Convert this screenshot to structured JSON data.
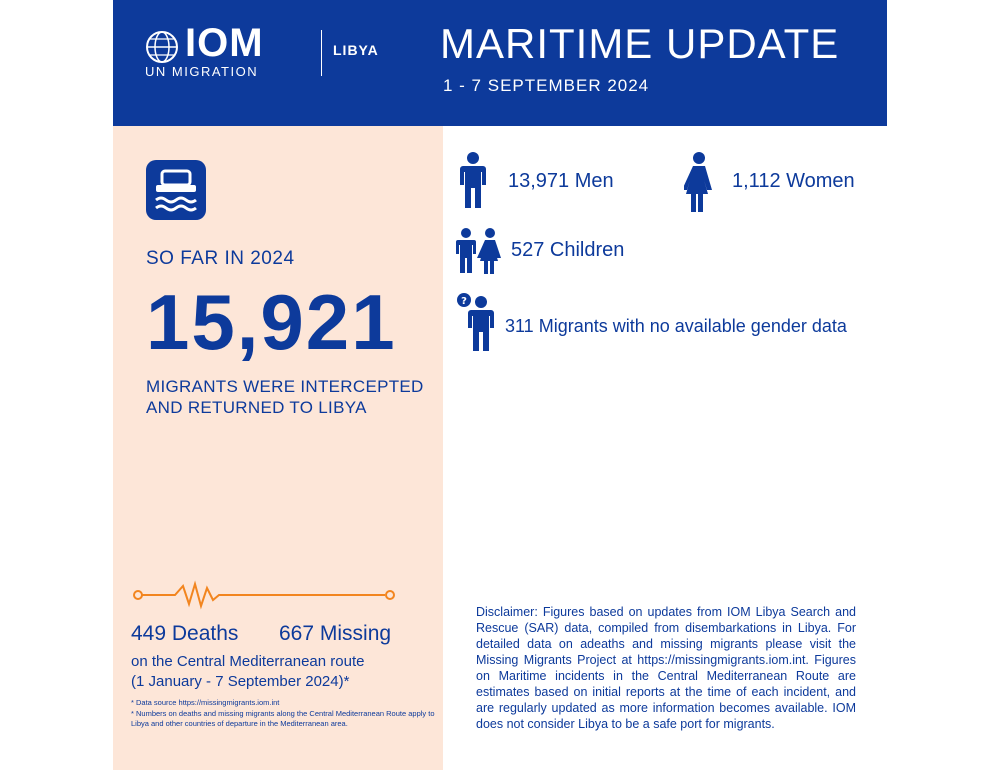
{
  "header": {
    "logo_text": "IOM",
    "logo_subtext": "UN MIGRATION",
    "country": "LIBYA",
    "title": "MARITIME UPDATE",
    "date_range": "1 - 7 SEPTEMBER 2024"
  },
  "summary": {
    "so_far_label": "SO FAR IN 2024",
    "total_intercepted": "15,921",
    "intercepted_text": "MIGRANTS WERE INTERCEPTED AND RETURNED TO LIBYA"
  },
  "route": {
    "deaths": "449 Deaths",
    "missing": "667 Missing",
    "route_line1": "on the Central Mediterranean route",
    "route_line2": "(1 January - 7 September 2024)*",
    "footnote1": "*   Data source https://missingmigrants.iom.int",
    "footnote2": "*   Numbers on deaths and missing migrants along the Central Mediterranean Route apply to Libya and other countries of departure in the Mediterranean area."
  },
  "breakdown": {
    "men": "13,971 Men",
    "women": "1,112 Women",
    "children": "527 Children",
    "unknown": "311 Migrants with no available gender data"
  },
  "disclaimer": "Disclaimer: Figures based on updates from IOM Libya Search and Rescue (SAR) data, compiled from disembarkations in Libya. For detailed data on adeaths and missing migrants please visit the Missing Migrants Project at https://missingmigrants.iom.int. Figures on Maritime incidents in the Central Mediterranean Route are estimates based on initial reports at the time of each incident, and are regularly updated as more information becomes available. IOM does not consider Libya to be a safe port for migrants.",
  "icons": {
    "logo": "globe-icon",
    "boat": "boat-icon",
    "pulse": "heartbeat-line-icon",
    "men": "man-icon",
    "women": "woman-icon",
    "children": "children-icon",
    "unknown": "unknown-person-icon"
  },
  "colors": {
    "brand_blue": "#0d3a9b",
    "panel_peach": "#fde6d8",
    "accent_orange": "#f2851f"
  }
}
